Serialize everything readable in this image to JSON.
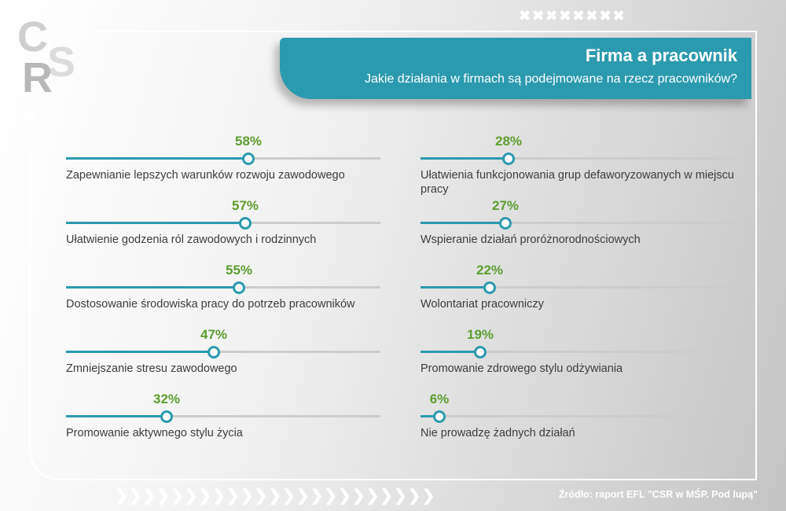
{
  "logo": {
    "letters": [
      "C",
      "S",
      "R"
    ]
  },
  "decorations": {
    "xmarks": "✖✖✖✖✖✖✖✖",
    "chevrons": "❯❯❯❯❯❯❯❯❯❯❯❯❯❯❯❯❯❯❯❯❯❯❯"
  },
  "header": {
    "title": "Firma a pracownik",
    "subtitle": "Jakie działania w firmach są podejmowane na rzecz pracowników?"
  },
  "colors": {
    "accent": "#2c9aae",
    "percent": "#5c9e2f",
    "track": "#cccccc"
  },
  "chart_data": {
    "type": "bar",
    "title": "Firma a pracownik",
    "subtitle": "Jakie działania w firmach są podejmowane na rzecz pracowników?",
    "ylim": [
      0,
      100
    ],
    "items": [
      {
        "label": "Zapewnianie lepszych  warunków rozwoju zawodowego",
        "value": 58,
        "display": "58%"
      },
      {
        "label": "Ułatwienie godzenia ról zawodowych i rodzinnych",
        "value": 57,
        "display": "57%"
      },
      {
        "label": "Dostosowanie środowiska pracy do potrzeb pracowników",
        "value": 55,
        "display": "55%"
      },
      {
        "label": "Zmniejszanie stresu zawodowego",
        "value": 47,
        "display": "47%"
      },
      {
        "label": "Promowanie aktywnego stylu życia",
        "value": 32,
        "display": "32%"
      },
      {
        "label": "Ułatwienia funkcjonowania grup defaworyzowanych w miejscu pracy",
        "value": 28,
        "display": "28%"
      },
      {
        "label": "Wspieranie działań proróżnorodnościowych",
        "value": 27,
        "display": "27%"
      },
      {
        "label": "Wolontariat pracowniczy",
        "value": 22,
        "display": "22%"
      },
      {
        "label": "Promowanie zdrowego stylu odżywiania",
        "value": 19,
        "display": "19%"
      },
      {
        "label": "Nie prowadzę żadnych działań",
        "value": 6,
        "display": "6%"
      }
    ]
  },
  "source": "Źródło: raport EFL \"CSR w MŚP. Pod lupą\""
}
